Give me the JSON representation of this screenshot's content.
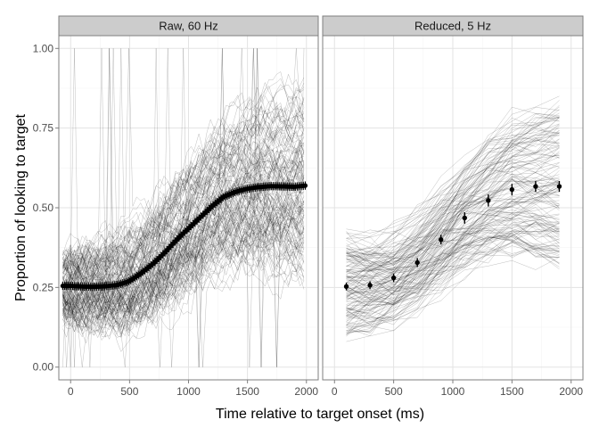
{
  "chart_data": {
    "type": "line",
    "xlabel": "Time relative to target onset (ms)",
    "ylabel": "Proportion of looking to target",
    "ylim": [
      -0.04,
      1.04
    ],
    "xlim": [
      -100,
      2100
    ],
    "y_ticks": [
      "0.00",
      "0.25",
      "0.50",
      "0.75",
      "1.00"
    ],
    "x_ticks": [
      "0",
      "500",
      "1000",
      "1500",
      "2000"
    ],
    "grid": true,
    "panels": [
      {
        "title": "Raw, 60 Hz",
        "individual_trajectories": {
          "count": 150,
          "color": "#000000",
          "opacity": 0.25,
          "spread_at_start": [
            0.0,
            0.45
          ],
          "spread_at_end": [
            0.0,
            1.0
          ]
        },
        "mean_with_error": {
          "x": [
            -67,
            0,
            100,
            200,
            300,
            400,
            500,
            600,
            700,
            800,
            900,
            1000,
            1100,
            1200,
            1300,
            1400,
            1500,
            1600,
            1700,
            1800,
            1900,
            2000
          ],
          "y": [
            0.255,
            0.255,
            0.253,
            0.252,
            0.254,
            0.258,
            0.27,
            0.295,
            0.325,
            0.36,
            0.4,
            0.435,
            0.47,
            0.505,
            0.535,
            0.55,
            0.56,
            0.565,
            0.568,
            0.567,
            0.566,
            0.57
          ],
          "se": [
            0.012,
            0.012,
            0.012,
            0.012,
            0.012,
            0.012,
            0.012,
            0.013,
            0.013,
            0.014,
            0.014,
            0.014,
            0.014,
            0.014,
            0.014,
            0.014,
            0.014,
            0.014,
            0.014,
            0.014,
            0.014,
            0.014
          ]
        }
      },
      {
        "title": "Reduced, 5 Hz",
        "individual_trajectories": {
          "count": 150,
          "color": "#000000",
          "opacity": 0.25,
          "spread_at_start": [
            0.08,
            0.43
          ],
          "spread_at_end": [
            0.35,
            0.9
          ]
        },
        "mean_with_error": {
          "x": [
            100,
            300,
            500,
            700,
            900,
            1100,
            1300,
            1500,
            1700,
            1900
          ],
          "y": [
            0.253,
            0.257,
            0.28,
            0.328,
            0.4,
            0.468,
            0.523,
            0.557,
            0.567,
            0.567
          ],
          "se": [
            0.012,
            0.012,
            0.013,
            0.014,
            0.015,
            0.018,
            0.019,
            0.018,
            0.017,
            0.017
          ]
        }
      }
    ]
  }
}
